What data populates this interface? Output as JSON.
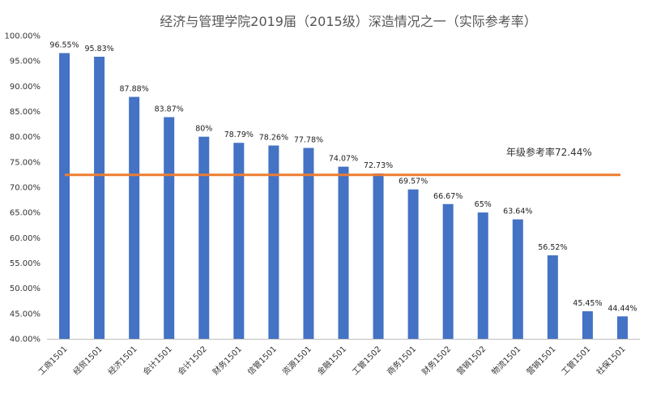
{
  "chart_data": {
    "type": "bar",
    "title": "经济与管理学院2019届（2015级）深造情况之一（实际参考率）",
    "categories": [
      "工商1501",
      "经贸1501",
      "经济1501",
      "会计1501",
      "会计1502",
      "财务1501",
      "信管1501",
      "资源1501",
      "金融1501",
      "工管1502",
      "商务1501",
      "财务1502",
      "营销1502",
      "物流1501",
      "营销1501",
      "工管1501",
      "社保1501"
    ],
    "values": [
      96.55,
      95.83,
      87.88,
      83.87,
      80,
      78.79,
      78.26,
      77.78,
      74.07,
      72.73,
      69.57,
      66.67,
      65,
      63.64,
      56.52,
      45.45,
      44.44
    ],
    "data_labels": [
      "96.55%",
      "95.83%",
      "87.88%",
      "83.87%",
      "80%",
      "78.79%",
      "78.26%",
      "77.78%",
      "74.07%",
      "72.73%",
      "69.57%",
      "66.67%",
      "65%",
      "63.64%",
      "56.52%",
      "45.45%",
      "44.44%"
    ],
    "ylim": [
      40,
      100
    ],
    "yticks": [
      40,
      45,
      50,
      55,
      60,
      65,
      70,
      75,
      80,
      85,
      90,
      95,
      100
    ],
    "ytick_labels": [
      "40.00%",
      "45.00%",
      "50.00%",
      "55.00%",
      "60.00%",
      "65.00%",
      "70.00%",
      "75.00%",
      "80.00%",
      "85.00%",
      "90.00%",
      "95.00%",
      "100.00%"
    ],
    "reference_line": {
      "value": 72.44,
      "label": "年级参考率72.44%"
    },
    "colors": {
      "bar": "#4472C4",
      "reference_line": "#ED7D31",
      "axis": "#BFBFBF"
    },
    "grid": false,
    "legend": "none"
  }
}
